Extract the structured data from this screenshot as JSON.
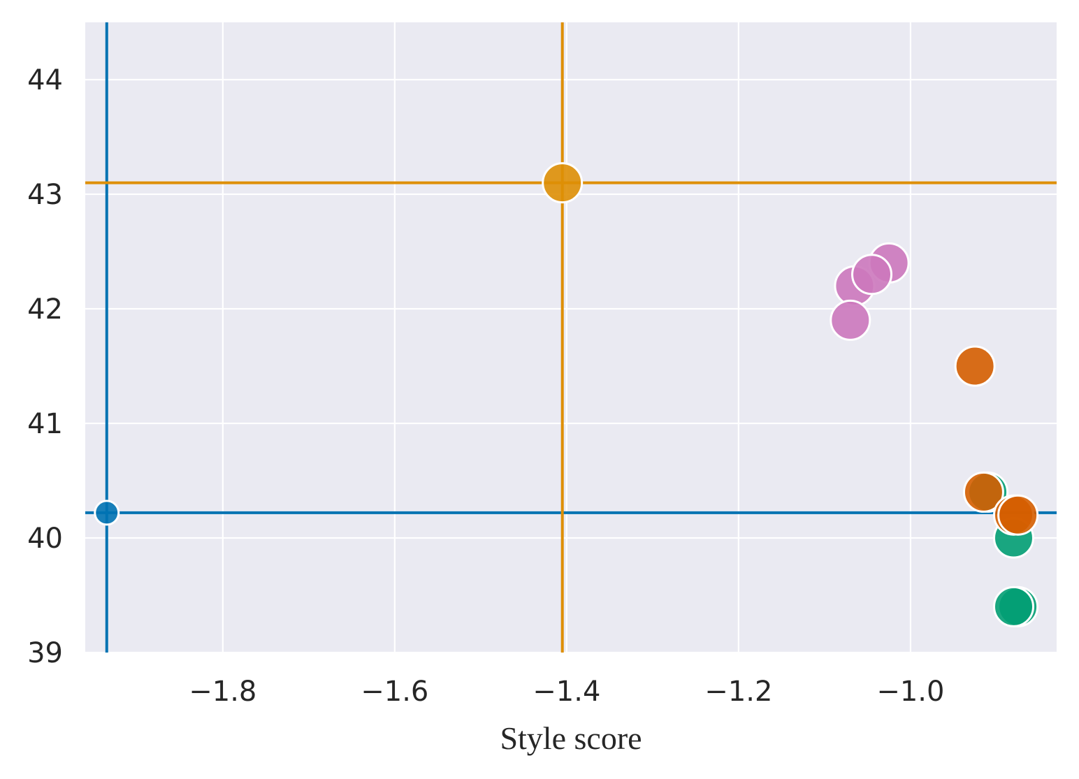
{
  "chart_data": {
    "type": "scatter",
    "title": "",
    "xlabel": "Style score",
    "ylabel": "",
    "xlim": [
      -1.96,
      -0.83
    ],
    "ylim": [
      39,
      44.5
    ],
    "xticks": [
      -1.8,
      -1.6,
      -1.4,
      -1.2,
      -1.0
    ],
    "xtick_labels": [
      "−1.8",
      "−1.6",
      "−1.4",
      "−1.2",
      "−1.0"
    ],
    "yticks": [
      39,
      40,
      41,
      42,
      43,
      44
    ],
    "ytick_labels": [
      "39",
      "40",
      "41",
      "42",
      "43",
      "44"
    ],
    "grid": true,
    "background": "#eaeaf2",
    "reference_lines": [
      {
        "color": "#0173b2",
        "x": -1.935,
        "y": 40.22
      },
      {
        "color": "#de8f05",
        "x": -1.405,
        "y": 43.1
      }
    ],
    "series": [
      {
        "color": "#0173b2",
        "size": "small",
        "points": [
          {
            "x": -1.935,
            "y": 40.22
          }
        ]
      },
      {
        "color": "#de8f05",
        "size": "large",
        "points": [
          {
            "x": -1.405,
            "y": 43.1
          }
        ]
      },
      {
        "color": "#cc78bc",
        "size": "large",
        "points": [
          {
            "x": -1.025,
            "y": 42.4
          },
          {
            "x": -1.065,
            "y": 42.2
          },
          {
            "x": -1.045,
            "y": 42.3
          },
          {
            "x": -1.07,
            "y": 41.9
          }
        ]
      },
      {
        "color": "#029e73",
        "size": "large",
        "points": [
          {
            "x": -0.91,
            "y": 40.4
          },
          {
            "x": -0.88,
            "y": 40.0
          },
          {
            "x": -0.875,
            "y": 39.4
          },
          {
            "x": -0.88,
            "y": 39.4
          }
        ]
      },
      {
        "color": "#d55e00",
        "size": "large",
        "points": [
          {
            "x": -0.925,
            "y": 41.5
          },
          {
            "x": -0.915,
            "y": 40.4
          },
          {
            "x": -0.88,
            "y": 40.2
          },
          {
            "x": -0.875,
            "y": 40.2
          }
        ]
      }
    ]
  }
}
